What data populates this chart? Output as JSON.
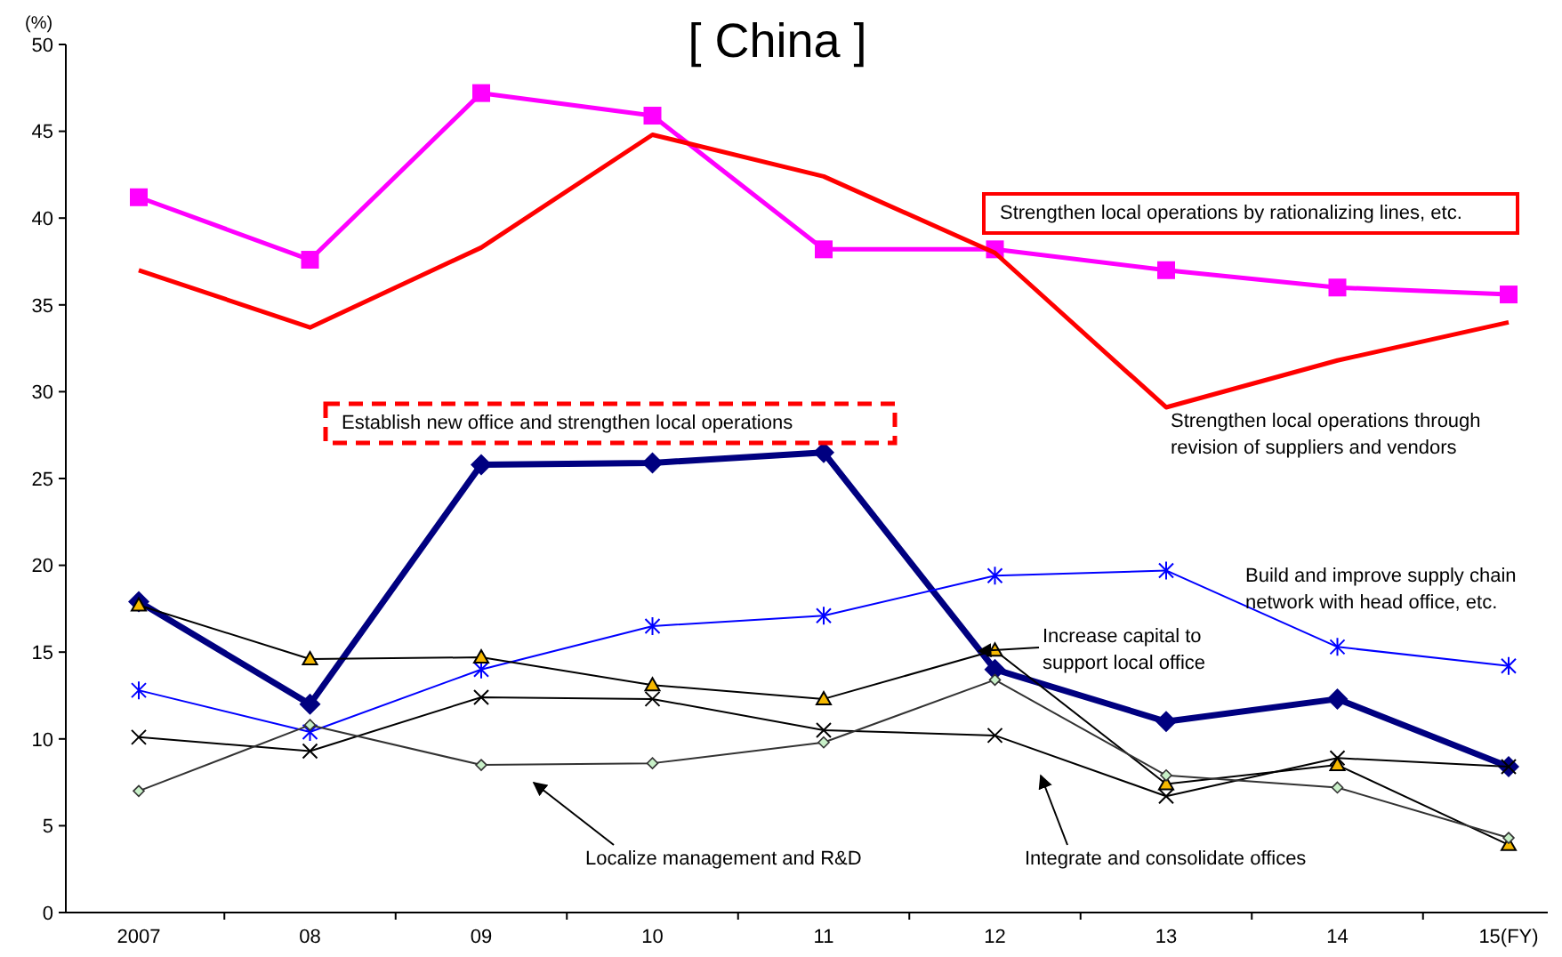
{
  "chart_data": {
    "type": "line",
    "title": "[ China ]",
    "ylabel": "(%)",
    "categories": [
      "2007",
      "08",
      "09",
      "10",
      "11",
      "12",
      "13",
      "14",
      "15(FY)"
    ],
    "ylim": [
      0,
      50
    ],
    "yticks": [
      0,
      5,
      10,
      15,
      20,
      25,
      30,
      35,
      40,
      45,
      50
    ],
    "grid": false,
    "series": [
      {
        "color": "#ff00ff",
        "marker": "square",
        "values": [
          41.2,
          37.6,
          47.2,
          45.9,
          38.2,
          38.2,
          37.0,
          36.0,
          35.6
        ]
      },
      {
        "color": "#ff0000",
        "marker": "none",
        "values": [
          37.0,
          33.7,
          38.3,
          44.8,
          42.4,
          38.0,
          29.1,
          31.8,
          34.0
        ]
      },
      {
        "color": "#000080",
        "marker": "diamond",
        "values": [
          17.9,
          12.0,
          25.8,
          25.9,
          26.5,
          14.0,
          11.0,
          12.3,
          8.4
        ]
      },
      {
        "color": "#0000ff",
        "marker": "cross",
        "values": [
          12.8,
          10.4,
          14.0,
          16.5,
          17.1,
          19.4,
          19.7,
          15.3,
          14.2
        ]
      },
      {
        "color": "#000000",
        "marker": "triangle",
        "values": [
          17.7,
          14.6,
          14.7,
          13.1,
          12.3,
          15.1,
          7.4,
          8.5,
          3.9
        ]
      },
      {
        "color": "#000000",
        "marker": "cross",
        "values": [
          10.1,
          9.3,
          12.4,
          12.3,
          10.5,
          10.2,
          6.7,
          8.9,
          8.4
        ]
      },
      {
        "color": "#333333",
        "marker": "diamond",
        "values": [
          7.0,
          10.8,
          8.5,
          8.6,
          9.8,
          13.4,
          7.9,
          7.2,
          4.3
        ]
      }
    ],
    "annotations": [
      "Strengthen local operations by rationalizing lines, etc.",
      "Establish new office and strengthen local operations",
      "Strengthen local operations through revision of suppliers and vendors",
      "Build and improve supply chain network with head office, etc.",
      "Increase capital to support local office",
      "Localize management and R&D",
      "Integrate and consolidate offices"
    ]
  }
}
